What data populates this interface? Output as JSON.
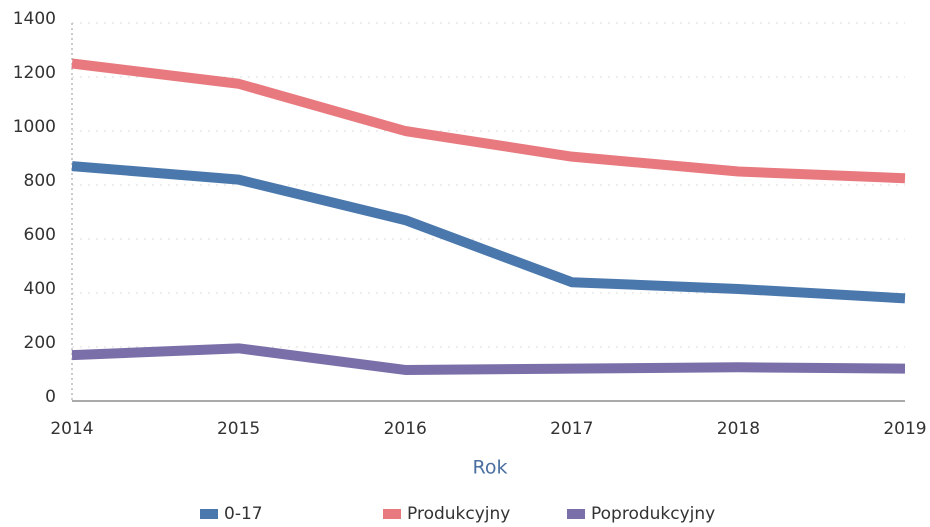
{
  "chart_data": {
    "type": "line",
    "xlabel": "Rok",
    "categories": [
      "2014",
      "2015",
      "2016",
      "2017",
      "2018",
      "2019"
    ],
    "series": [
      {
        "name": "0-17",
        "color": "#4a78ad",
        "values": [
          870,
          820,
          670,
          440,
          415,
          380
        ]
      },
      {
        "name": "Produkcyjny",
        "color": "#e8797e",
        "values": [
          1250,
          1175,
          1000,
          905,
          850,
          825
        ]
      },
      {
        "name": "Poprodukcyjny",
        "color": "#7b6fa9",
        "values": [
          170,
          195,
          115,
          120,
          125,
          120
        ]
      }
    ],
    "ylim": [
      0,
      1400
    ],
    "yticks": [
      0,
      200,
      400,
      600,
      800,
      1000,
      1200,
      1400
    ],
    "grid": true,
    "legend": "bottom"
  }
}
